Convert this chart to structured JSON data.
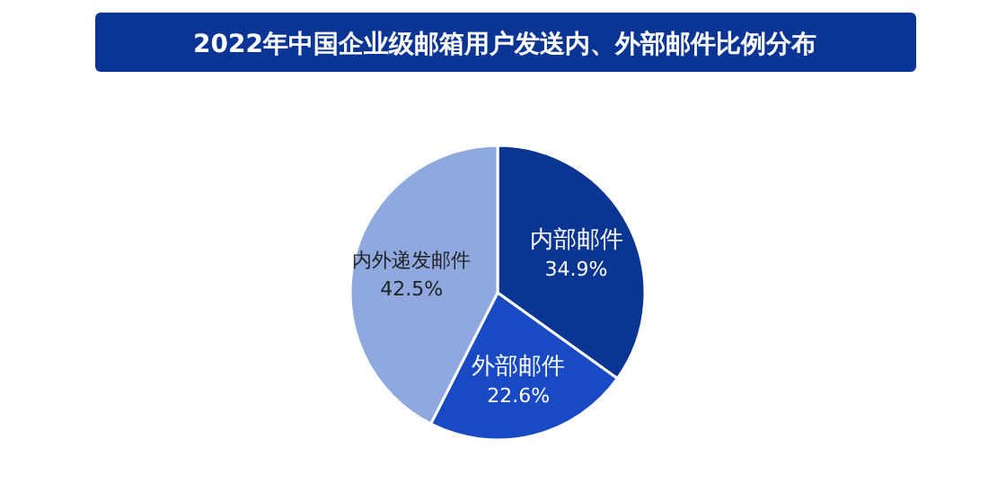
{
  "chart_data": {
    "type": "pie",
    "title": "2022年中国企业级邮箱用户发送内、外部邮件比例分布",
    "categories": [
      "内部邮件",
      "外部邮件",
      "内外递发邮件"
    ],
    "values": [
      34.9,
      22.6,
      42.5
    ],
    "value_labels": [
      "34.9%",
      "22.6%",
      "42.5%"
    ],
    "colors": [
      "#0b3593",
      "#1a49c4",
      "#8fa9e0"
    ]
  }
}
